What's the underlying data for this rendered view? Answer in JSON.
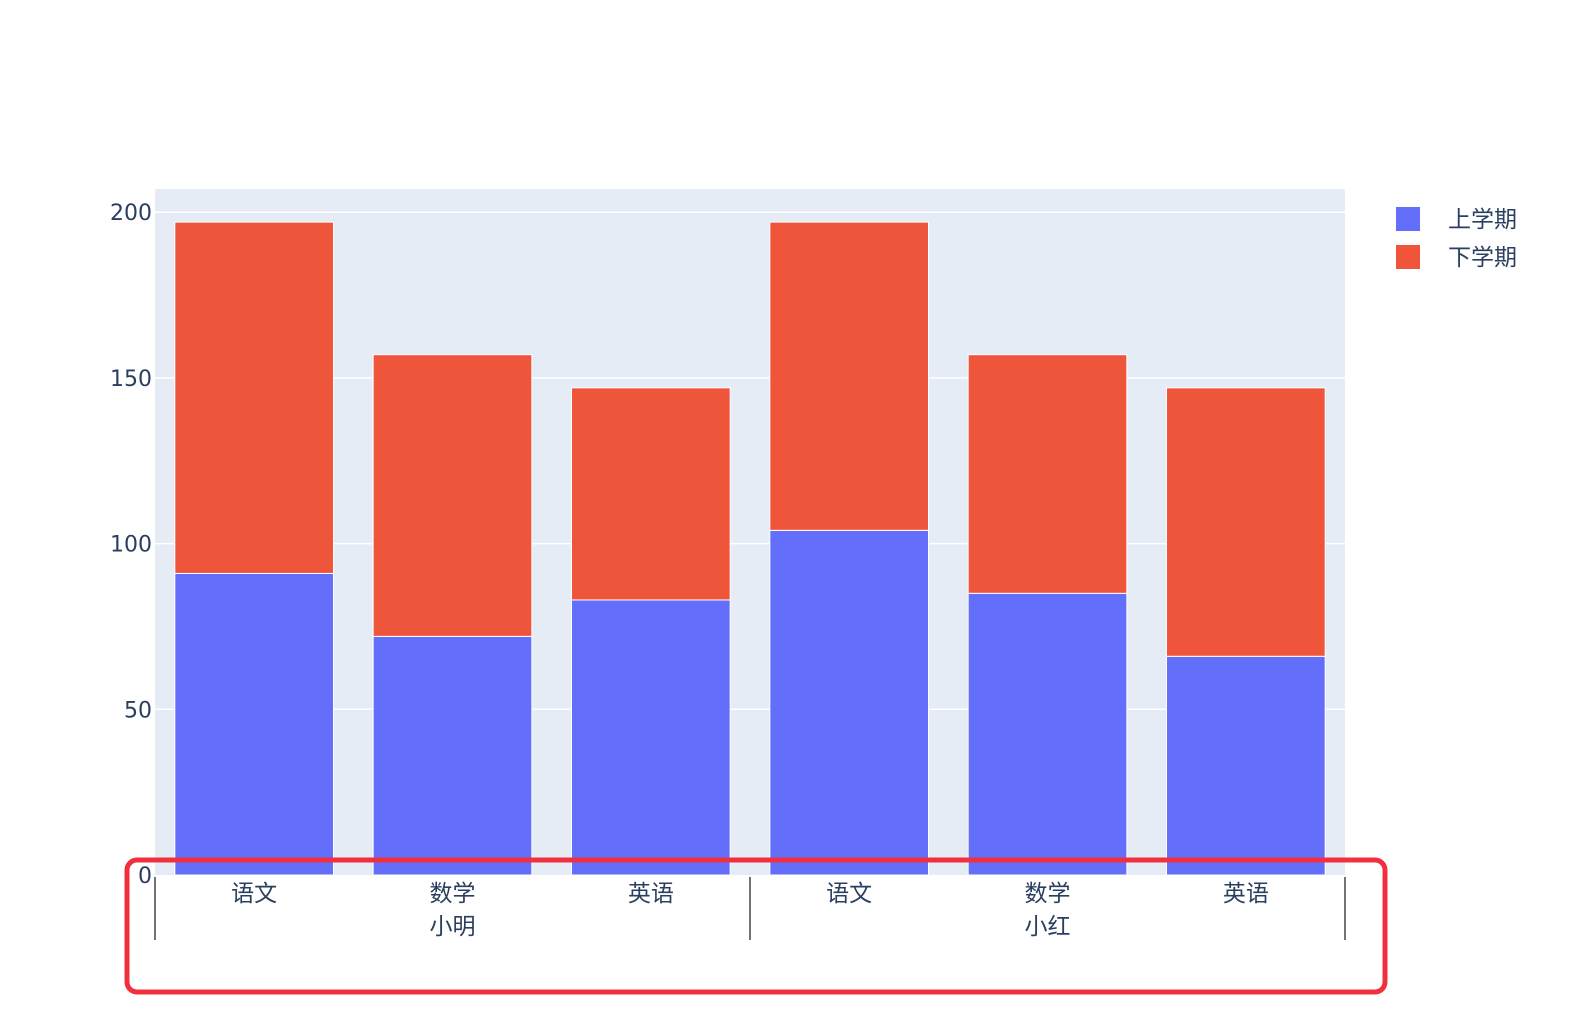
{
  "chart_data": {
    "type": "bar",
    "barmode": "stack",
    "title": "",
    "xlabel": "",
    "ylabel": "",
    "ylim": [
      0,
      207
    ],
    "yticks": [
      0,
      50,
      100,
      150,
      200
    ],
    "grid": true,
    "legend_position": "top-right",
    "groups": [
      "小明",
      "小红"
    ],
    "subcategories": [
      "语文",
      "数学",
      "英语"
    ],
    "categories": [
      {
        "group": "小明",
        "subject": "语文"
      },
      {
        "group": "小明",
        "subject": "数学"
      },
      {
        "group": "小明",
        "subject": "英语"
      },
      {
        "group": "小红",
        "subject": "语文"
      },
      {
        "group": "小红",
        "subject": "数学"
      },
      {
        "group": "小红",
        "subject": "英语"
      }
    ],
    "series": [
      {
        "name": "上学期",
        "color": "#636efa",
        "values": [
          91,
          72,
          83,
          104,
          85,
          66
        ]
      },
      {
        "name": "下学期",
        "color": "#ef553b",
        "values": [
          106,
          85,
          64,
          93,
          72,
          81
        ]
      }
    ]
  },
  "colors": {
    "plot_background": "#e5ecf6",
    "gridline": "#ffffff",
    "text": "#2a3f5f",
    "axis_divider": "#444444",
    "highlight_box": "#f0303f"
  }
}
